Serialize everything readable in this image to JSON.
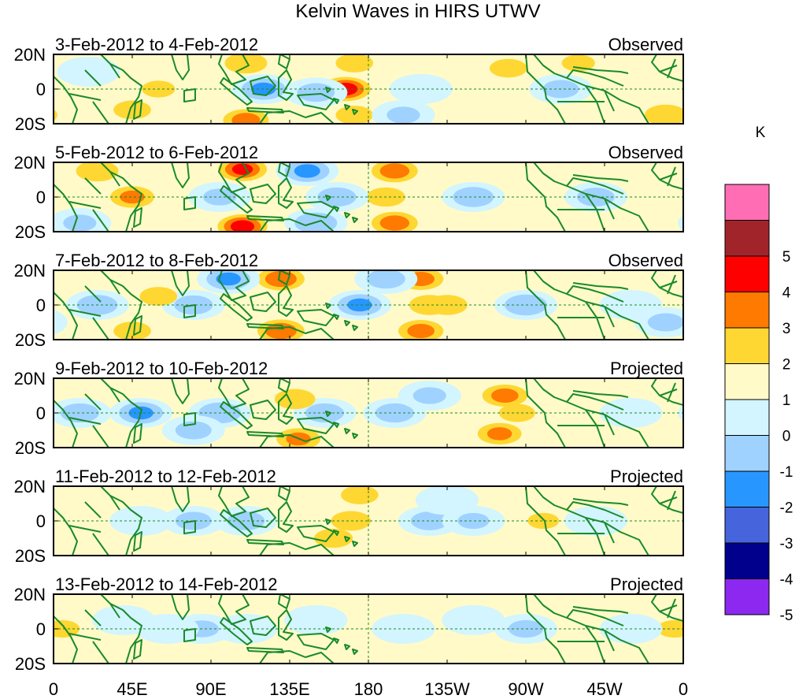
{
  "title": "Kelvin Waves in HIRS UTWV",
  "colors": {
    "land": "#1a8a2a",
    "grid": "#1a8a2a",
    "frame": "#000000"
  },
  "y_ticks": [
    "20N",
    "0",
    "20S"
  ],
  "x_ticks": [
    "0",
    "45E",
    "90E",
    "135E",
    "180",
    "135W",
    "90W",
    "45W",
    "0"
  ],
  "panels": [
    {
      "period": "3-Feb-2012 to 4-Feb-2012",
      "status": "Observed"
    },
    {
      "period": "5-Feb-2012 to 6-Feb-2012",
      "status": "Observed"
    },
    {
      "period": "7-Feb-2012 to 8-Feb-2012",
      "status": "Observed"
    },
    {
      "period": "9-Feb-2012 to 10-Feb-2012",
      "status": "Projected"
    },
    {
      "period": "11-Feb-2012 to 12-Feb-2012",
      "status": "Projected"
    },
    {
      "period": "13-Feb-2012 to 14-Feb-2012",
      "status": "Projected"
    }
  ],
  "colorbar": {
    "unit": "K",
    "bins": [
      {
        "color": "#ff6eb4"
      },
      {
        "color": "#a0242a",
        "label": "5"
      },
      {
        "color": "#ff0000",
        "label": "4"
      },
      {
        "color": "#ff7a00",
        "label": "3"
      },
      {
        "color": "#ffd732",
        "label": "2"
      },
      {
        "color": "#fffac8",
        "label": "1"
      },
      {
        "color": "#d2f5ff",
        "label": "0"
      },
      {
        "color": "#a0d2ff",
        "label": "-1"
      },
      {
        "color": "#2896ff",
        "label": "-2"
      },
      {
        "color": "#4664dc",
        "label": "-3"
      },
      {
        "color": "#00008c",
        "label": "-4"
      },
      {
        "color": "#8c28f0",
        "label": "-5"
      }
    ]
  },
  "chart_data": {
    "type": "heatmap",
    "title": "Kelvin Waves in HIRS UTWV",
    "unit": "K",
    "x_range": [
      0,
      360
    ],
    "x_tick_values": [
      0,
      45,
      90,
      135,
      180,
      225,
      270,
      315,
      360
    ],
    "y_range": [
      -20,
      20
    ],
    "y_tick_values": [
      20,
      0,
      -20
    ],
    "anomaly_centers": [
      [
        {
          "lon": 210,
          "lat": 0,
          "value": -0.8
        },
        {
          "lon": 167,
          "lat": 0,
          "value": 3.5
        },
        {
          "lon": 172,
          "lat": 15,
          "value": 1.5
        },
        {
          "lon": 172,
          "lat": -15,
          "value": 1.5
        },
        {
          "lon": 110,
          "lat": 15,
          "value": 2.0
        },
        {
          "lon": 120,
          "lat": 0,
          "value": -2.2
        },
        {
          "lon": 150,
          "lat": -2,
          "value": -1.5
        },
        {
          "lon": 110,
          "lat": -18,
          "value": 2.5
        },
        {
          "lon": 45,
          "lat": -12,
          "value": 1.5
        },
        {
          "lon": 60,
          "lat": 0,
          "value": 1.2
        },
        {
          "lon": 260,
          "lat": 12,
          "value": 1.5
        },
        {
          "lon": 290,
          "lat": 0,
          "value": -1.4
        },
        {
          "lon": 300,
          "lat": 15,
          "value": 1.2
        },
        {
          "lon": 350,
          "lat": -15,
          "value": 2.0
        },
        {
          "lon": 320,
          "lat": -10,
          "value": 1.0
        },
        {
          "lon": 20,
          "lat": 10,
          "value": -1.0
        },
        {
          "lon": 200,
          "lat": -15,
          "value": -1.2
        }
      ],
      [
        {
          "lon": 195,
          "lat": 15,
          "value": 2.6
        },
        {
          "lon": 195,
          "lat": -15,
          "value": 2.6
        },
        {
          "lon": 190,
          "lat": 0,
          "value": 1.6
        },
        {
          "lon": 145,
          "lat": 15,
          "value": -2.3
        },
        {
          "lon": 150,
          "lat": -15,
          "value": -2.0
        },
        {
          "lon": 162,
          "lat": 0,
          "value": -1.6
        },
        {
          "lon": 108,
          "lat": 16,
          "value": 3.2
        },
        {
          "lon": 108,
          "lat": -17,
          "value": 3.5
        },
        {
          "lon": 95,
          "lat": 0,
          "value": -1.2
        },
        {
          "lon": 45,
          "lat": 0,
          "value": 2.2
        },
        {
          "lon": 25,
          "lat": 15,
          "value": 2.0
        },
        {
          "lon": 75,
          "lat": 0,
          "value": 0.8
        },
        {
          "lon": 240,
          "lat": 0,
          "value": -1.8
        },
        {
          "lon": 270,
          "lat": 0,
          "value": 1.0
        },
        {
          "lon": 310,
          "lat": 0,
          "value": -1.5
        },
        {
          "lon": 15,
          "lat": -15,
          "value": -1.2
        },
        {
          "lon": 345,
          "lat": 5,
          "value": 0.8
        }
      ],
      [
        {
          "lon": 210,
          "lat": 15,
          "value": 2.4
        },
        {
          "lon": 210,
          "lat": -15,
          "value": 2.4
        },
        {
          "lon": 215,
          "lat": 0,
          "value": 1.8
        },
        {
          "lon": 225,
          "lat": 0,
          "value": 1.8
        },
        {
          "lon": 175,
          "lat": 0,
          "value": -2.2
        },
        {
          "lon": 190,
          "lat": 15,
          "value": -1.6
        },
        {
          "lon": 270,
          "lat": 0,
          "value": -2.0
        },
        {
          "lon": 130,
          "lat": 15,
          "value": 2.8
        },
        {
          "lon": 130,
          "lat": -15,
          "value": 2.8
        },
        {
          "lon": 120,
          "lat": 0,
          "value": 1.0
        },
        {
          "lon": 100,
          "lat": 15,
          "value": -2.2
        },
        {
          "lon": 80,
          "lat": 0,
          "value": -1.6
        },
        {
          "lon": 60,
          "lat": 5,
          "value": 1.5
        },
        {
          "lon": 25,
          "lat": 0,
          "value": -1.8
        },
        {
          "lon": 45,
          "lat": -15,
          "value": 1.5
        },
        {
          "lon": 330,
          "lat": 0,
          "value": -1.0
        },
        {
          "lon": 350,
          "lat": -10,
          "value": -1.4
        }
      ],
      [
        {
          "lon": 258,
          "lat": 10,
          "value": 2.4
        },
        {
          "lon": 255,
          "lat": -12,
          "value": 2.2
        },
        {
          "lon": 265,
          "lat": 0,
          "value": 1.4
        },
        {
          "lon": 195,
          "lat": 0,
          "value": -1.6
        },
        {
          "lon": 215,
          "lat": 10,
          "value": -1.2
        },
        {
          "lon": 155,
          "lat": 0,
          "value": -1.6
        },
        {
          "lon": 138,
          "lat": 8,
          "value": 1.8
        },
        {
          "lon": 140,
          "lat": -15,
          "value": 2.2
        },
        {
          "lon": 120,
          "lat": 0,
          "value": 0.8
        },
        {
          "lon": 95,
          "lat": 0,
          "value": -2.0
        },
        {
          "lon": 80,
          "lat": -10,
          "value": -1.4
        },
        {
          "lon": 50,
          "lat": 0,
          "value": -2.2
        },
        {
          "lon": 15,
          "lat": 0,
          "value": -1.6
        },
        {
          "lon": 300,
          "lat": 0,
          "value": 0.8
        },
        {
          "lon": 330,
          "lat": 0,
          "value": -0.8
        },
        {
          "lon": 355,
          "lat": -15,
          "value": 1.0
        }
      ],
      [
        {
          "lon": 170,
          "lat": 0,
          "value": 1.7
        },
        {
          "lon": 160,
          "lat": -10,
          "value": 1.6
        },
        {
          "lon": 175,
          "lat": 15,
          "value": 1.5
        },
        {
          "lon": 140,
          "lat": 0,
          "value": 0.5
        },
        {
          "lon": 215,
          "lat": 0,
          "value": -1.5
        },
        {
          "lon": 225,
          "lat": 12,
          "value": -1.0
        },
        {
          "lon": 240,
          "lat": 0,
          "value": -1.1
        },
        {
          "lon": 280,
          "lat": 0,
          "value": 1.1
        },
        {
          "lon": 110,
          "lat": 0,
          "value": -1.5
        },
        {
          "lon": 80,
          "lat": 0,
          "value": -1.4
        },
        {
          "lon": 50,
          "lat": 0,
          "value": -0.8
        },
        {
          "lon": 310,
          "lat": 0,
          "value": -0.8
        },
        {
          "lon": 335,
          "lat": 0,
          "value": 0.6
        },
        {
          "lon": 20,
          "lat": 0,
          "value": 0.5
        }
      ],
      [
        {
          "lon": 110,
          "lat": 0,
          "value": -0.7
        },
        {
          "lon": 85,
          "lat": 0,
          "value": -1.2
        },
        {
          "lon": 65,
          "lat": 0,
          "value": -1.0
        },
        {
          "lon": 40,
          "lat": 5,
          "value": -1.0
        },
        {
          "lon": 5,
          "lat": 0,
          "value": 1.3
        },
        {
          "lon": 355,
          "lat": 0,
          "value": 1.3
        },
        {
          "lon": 175,
          "lat": 0,
          "value": 0.6
        },
        {
          "lon": 200,
          "lat": 0,
          "value": -0.6
        },
        {
          "lon": 270,
          "lat": 0,
          "value": -1.3
        },
        {
          "lon": 240,
          "lat": 5,
          "value": -0.8
        },
        {
          "lon": 300,
          "lat": 0,
          "value": 0.6
        },
        {
          "lon": 330,
          "lat": 0,
          "value": -0.5
        },
        {
          "lon": 150,
          "lat": 5,
          "value": -0.7
        }
      ]
    ]
  }
}
